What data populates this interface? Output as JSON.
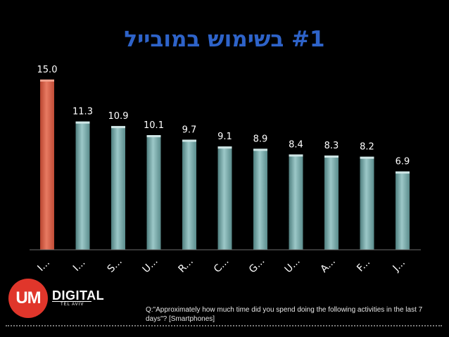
{
  "title": "#1 בשימוש במובייל",
  "chart_data": {
    "type": "bar",
    "categories": [
      "I...",
      "I...",
      "S...",
      "U...",
      "R...",
      "C...",
      "G...",
      "U...",
      "A...",
      "F...",
      "J..."
    ],
    "values": [
      15.0,
      11.3,
      10.9,
      10.1,
      9.7,
      9.1,
      8.9,
      8.4,
      8.3,
      8.2,
      6.9
    ],
    "data_labels": [
      "15.0",
      "11.3",
      "10.9",
      "10.1",
      "9.7",
      "9.1",
      "8.9",
      "8.4",
      "8.3",
      "8.2",
      "6.9"
    ],
    "highlight_color": "#d9604a",
    "bar_color": "#7aa9a9",
    "grid": false,
    "legend": "none"
  },
  "logo": {
    "mark": "UM",
    "name": "DIGITAL",
    "sub": "TEL AVIV"
  },
  "footnote": "Q:\"Approximately how much time did you spend doing the following activities in the last 7 days\"? [Smartphones]"
}
